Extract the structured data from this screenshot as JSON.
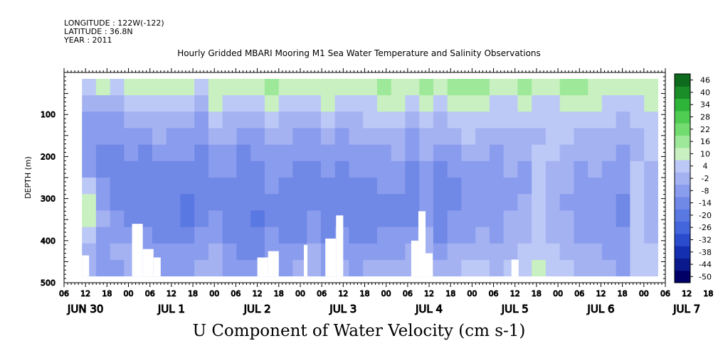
{
  "header": {
    "longitude": "LONGITUDE : 122W(-122)",
    "latitude": "LATITUDE : 36.8N",
    "year": "YEAR : 2011"
  },
  "chart_data": {
    "type": "heatmap",
    "title": "Hourly Gridded MBARI Mooring M1 Sea Water Temperature and Salinity Observations",
    "subtitle": "U Component of Water Velocity (cm s-1)",
    "ylabel": "DEPTH (m)",
    "xlabel": "",
    "ylim": [
      500,
      0
    ],
    "y_ticks": [
      100,
      200,
      300,
      400,
      500
    ],
    "y_tick_labels": [
      "100",
      "200",
      "300",
      "400",
      "500"
    ],
    "x_hour_labels": [
      "06",
      "12",
      "18",
      "00",
      "06",
      "12",
      "18",
      "00",
      "06",
      "12",
      "18",
      "00",
      "06",
      "12",
      "18",
      "00",
      "06",
      "12",
      "18",
      "00",
      "06",
      "12",
      "18",
      "00",
      "06",
      "12",
      "18",
      "00",
      "06",
      "12",
      "18",
      "00"
    ],
    "x_day_labels": [
      "JUN 30",
      "JUL  1",
      "JUL  2",
      "JUL  3",
      "JUL  4",
      "JUL  5",
      "JUL  6",
      "JUL  7"
    ],
    "x_range_hours_from_jun30_00": [
      6,
      174
    ],
    "data_extent_hours": [
      11,
      172
    ],
    "data_extent_depth_m": [
      15,
      485
    ],
    "colorbar": {
      "labels": [
        "46",
        "40",
        "34",
        "28",
        "22",
        "16",
        "10",
        "4",
        "-2",
        "-8",
        "-14",
        "-20",
        "-26",
        "-32",
        "-38",
        "-44",
        "-50"
      ],
      "min": -50,
      "max": 46
    },
    "approx_profiles": {
      "note": "approximate mean U (cm s-1) per 4-hour column, rows at depth 20,60,100,...,480 m",
      "depths_m": [
        20,
        60,
        100,
        140,
        180,
        220,
        260,
        300,
        340,
        380,
        420,
        460
      ],
      "columns": [
        [
          6,
          -2,
          -6,
          -8,
          -8,
          -6,
          4,
          10,
          12,
          6,
          2,
          -2
        ],
        [
          10,
          2,
          -4,
          -8,
          -10,
          -10,
          -6,
          -4,
          -2,
          -4,
          -6,
          -8
        ],
        [
          8,
          0,
          -4,
          -6,
          -10,
          -12,
          -12,
          -10,
          -8,
          -4,
          -2,
          -4
        ],
        [
          12,
          6,
          0,
          -4,
          -8,
          -10,
          -12,
          -12,
          -10,
          -6,
          -2,
          0
        ],
        [
          10,
          4,
          -2,
          -6,
          -10,
          -12,
          -14,
          -14,
          -12,
          -8,
          -6,
          -4
        ],
        [
          14,
          8,
          2,
          -2,
          -6,
          -10,
          -12,
          -14,
          -14,
          -12,
          -8,
          -4
        ],
        [
          10,
          4,
          -2,
          -6,
          -8,
          -10,
          -12,
          -14,
          -14,
          -12,
          -8,
          -4
        ],
        [
          12,
          6,
          0,
          -4,
          -8,
          -12,
          -14,
          -16,
          -16,
          -12,
          -8,
          -4
        ],
        [
          8,
          2,
          -4,
          -8,
          -10,
          -12,
          -12,
          -12,
          -10,
          -8,
          -4,
          -2
        ],
        [
          14,
          10,
          4,
          0,
          -4,
          -8,
          -10,
          -10,
          -8,
          -6,
          -2,
          2
        ],
        [
          12,
          6,
          2,
          -2,
          -6,
          -8,
          -10,
          -12,
          -12,
          -10,
          -8,
          -6
        ],
        [
          10,
          4,
          -2,
          -6,
          -10,
          -12,
          -14,
          -14,
          -14,
          -12,
          -10,
          -8
        ],
        [
          12,
          6,
          0,
          -4,
          -8,
          -10,
          -12,
          -14,
          -16,
          -14,
          -12,
          -8
        ],
        [
          16,
          12,
          6,
          0,
          -4,
          -6,
          -8,
          -10,
          -10,
          -8,
          -6,
          -4
        ],
        [
          14,
          8,
          2,
          -2,
          -6,
          -8,
          -10,
          -12,
          -12,
          -10,
          -8,
          -6
        ],
        [
          12,
          6,
          0,
          -4,
          -8,
          -10,
          -12,
          -12,
          -12,
          -10,
          -6,
          -2
        ],
        [
          10,
          4,
          -2,
          -6,
          -8,
          -10,
          -10,
          -10,
          -8,
          -6,
          -2,
          2
        ],
        [
          14,
          10,
          4,
          -2,
          -6,
          -8,
          -12,
          -14,
          -14,
          -12,
          -8,
          -4
        ],
        [
          12,
          6,
          0,
          -4,
          -8,
          -10,
          -12,
          -12,
          -10,
          -8,
          -4,
          0
        ],
        [
          10,
          6,
          2,
          -2,
          -4,
          -8,
          -10,
          -12,
          -12,
          -10,
          -8,
          -4
        ],
        [
          12,
          8,
          4,
          0,
          -4,
          -8,
          -10,
          -12,
          -12,
          -10,
          -6,
          -2
        ],
        [
          16,
          10,
          4,
          0,
          -4,
          -6,
          -8,
          -10,
          -10,
          -8,
          -4,
          0
        ],
        [
          14,
          10,
          6,
          2,
          -2,
          -6,
          -8,
          -10,
          -10,
          -8,
          -6,
          -2
        ],
        [
          12,
          6,
          0,
          -4,
          -8,
          -10,
          -12,
          -12,
          -10,
          -6,
          -2,
          2
        ],
        [
          18,
          12,
          6,
          2,
          -2,
          -4,
          -6,
          -6,
          -4,
          -2,
          2,
          4
        ],
        [
          14,
          8,
          2,
          -2,
          -6,
          -10,
          -12,
          -14,
          -12,
          -10,
          -6,
          -2
        ],
        [
          16,
          10,
          4,
          -2,
          -6,
          -8,
          -10,
          -10,
          -8,
          -6,
          -2,
          2
        ],
        [
          18,
          14,
          8,
          4,
          0,
          -4,
          -6,
          -8,
          -6,
          -4,
          0,
          4
        ],
        [
          20,
          12,
          6,
          2,
          -2,
          -4,
          -6,
          -6,
          -4,
          -2,
          2,
          4
        ],
        [
          14,
          8,
          4,
          0,
          -4,
          -6,
          -8,
          -8,
          -6,
          -4,
          0,
          2
        ],
        [
          12,
          8,
          4,
          2,
          0,
          -2,
          -4,
          -4,
          -2,
          0,
          2,
          4
        ],
        [
          16,
          10,
          6,
          2,
          -2,
          -4,
          -4,
          -2,
          0,
          2,
          4,
          6
        ],
        [
          14,
          8,
          4,
          2,
          4,
          6,
          8,
          6,
          4,
          6,
          8,
          10
        ],
        [
          12,
          8,
          6,
          4,
          4,
          2,
          0,
          -2,
          0,
          2,
          4,
          6
        ],
        [
          18,
          12,
          8,
          4,
          2,
          0,
          -2,
          -4,
          -2,
          0,
          2,
          4
        ],
        [
          16,
          10,
          6,
          2,
          -2,
          -4,
          -6,
          -8,
          -6,
          -4,
          -2,
          2
        ],
        [
          14,
          10,
          6,
          2,
          0,
          -2,
          -4,
          -6,
          -6,
          -4,
          -2,
          0
        ],
        [
          12,
          8,
          4,
          0,
          -2,
          -4,
          -6,
          -8,
          -8,
          -6,
          -4,
          -2
        ],
        [
          10,
          6,
          2,
          -2,
          -4,
          -6,
          -8,
          -10,
          -10,
          -8,
          -6,
          -4
        ],
        [
          12,
          8,
          4,
          2,
          0,
          4,
          6,
          8,
          6,
          4,
          6,
          8
        ],
        [
          14,
          10,
          8,
          6,
          4,
          2,
          0,
          -2,
          0,
          2,
          4,
          6
        ]
      ]
    }
  }
}
